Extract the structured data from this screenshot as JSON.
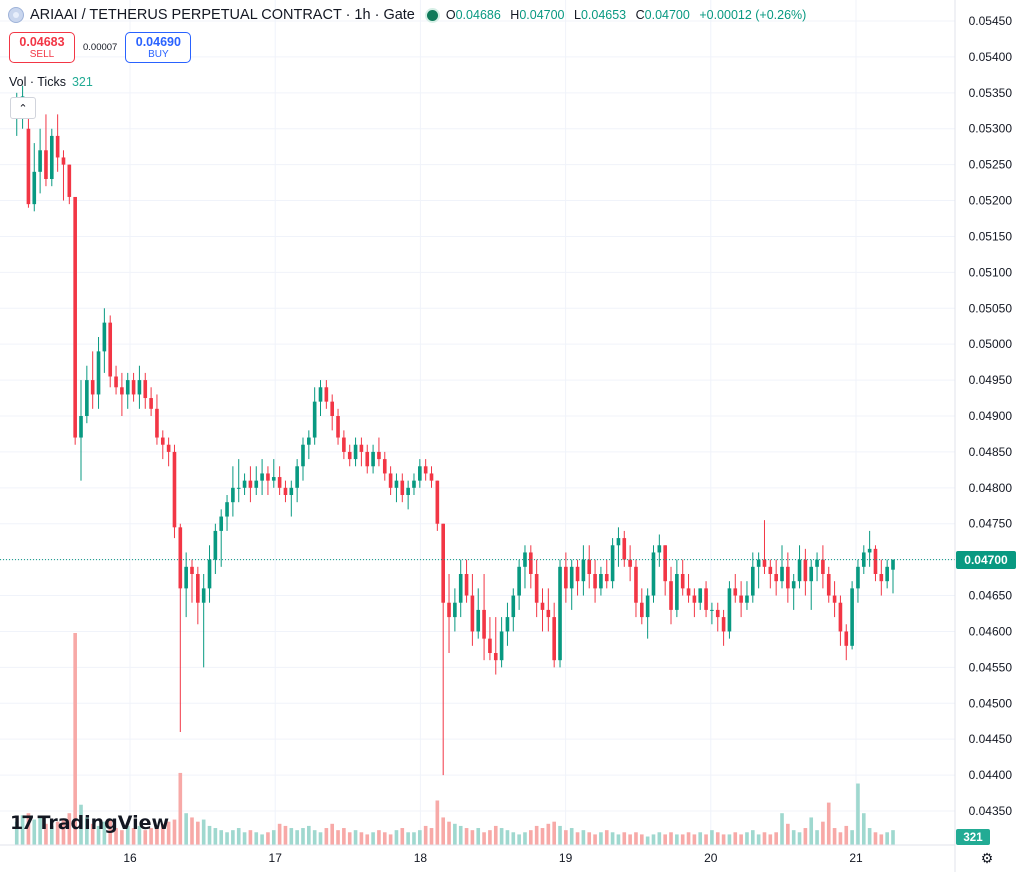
{
  "header": {
    "title": "ARIAAI / TETHERUS PERPETUAL CONTRACT · 1h · Gate",
    "ohlc": [
      {
        "key": "O",
        "value": "0.04686"
      },
      {
        "key": "H",
        "value": "0.04700"
      },
      {
        "key": "L",
        "value": "0.04653"
      },
      {
        "key": "C",
        "value": "0.04700"
      },
      {
        "key": "",
        "value": "+0.00012 (+0.26%)"
      }
    ]
  },
  "trade": {
    "sell_price": "0.04683",
    "sell_label": "SELL",
    "spread": "0.00007",
    "buy_price": "0.04690",
    "buy_label": "BUY"
  },
  "volume_indicator": {
    "label": "Vol · Ticks",
    "value": "321"
  },
  "logo_text": "TradingView",
  "colors": {
    "up": "#089981",
    "down": "#f23645",
    "vol_up": "#9fd8cf",
    "vol_down": "#f7a9a7",
    "last_price": "#089981"
  },
  "chart_data": {
    "type": "candlestick",
    "symbol": "ARIAAI / TETHERUS PERPETUAL CONTRACT",
    "interval": "1h",
    "exchange": "Gate",
    "price_axis": {
      "ticks": [
        "0.05450",
        "0.05400",
        "0.05350",
        "0.05300",
        "0.05250",
        "0.05200",
        "0.05150",
        "0.05100",
        "0.05050",
        "0.05000",
        "0.04950",
        "0.04900",
        "0.04850",
        "0.04800",
        "0.04750",
        "0.04700",
        "0.04650",
        "0.04600",
        "0.04550",
        "0.04500",
        "0.04450",
        "0.04400",
        "0.04350"
      ],
      "range": [
        0.0433,
        0.0547
      ]
    },
    "time_axis": {
      "labels": [
        "16",
        "17",
        "18",
        "19",
        "20",
        "21"
      ],
      "start_day": 15.2,
      "end_day": 21.35
    },
    "last_price": "0.04700",
    "last_volume": "321",
    "grid": true,
    "candles_start_day": 15.22,
    "candles_per_day": 24,
    "candles": [
      [
        0.05315,
        0.0535,
        0.0529,
        0.0533
      ],
      [
        0.0533,
        0.0536,
        0.053,
        0.05345
      ],
      [
        0.053,
        0.0532,
        0.0519,
        0.05195
      ],
      [
        0.05195,
        0.0528,
        0.05185,
        0.0524
      ],
      [
        0.0524,
        0.053,
        0.0521,
        0.0527
      ],
      [
        0.0527,
        0.0532,
        0.0522,
        0.0523
      ],
      [
        0.0523,
        0.053,
        0.0522,
        0.0529
      ],
      [
        0.0529,
        0.0532,
        0.0524,
        0.0526
      ],
      [
        0.0526,
        0.0527,
        0.052,
        0.0525
      ],
      [
        0.0525,
        0.0525,
        0.05195,
        0.05205
      ],
      [
        0.05205,
        0.05205,
        0.0486,
        0.0487
      ],
      [
        0.0487,
        0.0495,
        0.0481,
        0.049
      ],
      [
        0.049,
        0.0497,
        0.0489,
        0.0495
      ],
      [
        0.0495,
        0.0499,
        0.0491,
        0.0493
      ],
      [
        0.0493,
        0.0501,
        0.0491,
        0.0499
      ],
      [
        0.0499,
        0.0505,
        0.0496,
        0.0503
      ],
      [
        0.0503,
        0.0504,
        0.0494,
        0.04955
      ],
      [
        0.04955,
        0.0497,
        0.0493,
        0.0494
      ],
      [
        0.0494,
        0.0496,
        0.049,
        0.0493
      ],
      [
        0.0493,
        0.0496,
        0.0491,
        0.0495
      ],
      [
        0.0495,
        0.0496,
        0.0492,
        0.0493
      ],
      [
        0.0493,
        0.0497,
        0.0491,
        0.0495
      ],
      [
        0.0495,
        0.0496,
        0.0491,
        0.04925
      ],
      [
        0.04925,
        0.0494,
        0.049,
        0.0491
      ],
      [
        0.0491,
        0.0493,
        0.0486,
        0.0487
      ],
      [
        0.0487,
        0.0488,
        0.0484,
        0.0486
      ],
      [
        0.0486,
        0.0487,
        0.0483,
        0.0485
      ],
      [
        0.0485,
        0.0486,
        0.0473,
        0.04745
      ],
      [
        0.04745,
        0.0475,
        0.0446,
        0.0466
      ],
      [
        0.0466,
        0.0471,
        0.0462,
        0.0469
      ],
      [
        0.0469,
        0.047,
        0.0464,
        0.0468
      ],
      [
        0.0468,
        0.0469,
        0.0461,
        0.0464
      ],
      [
        0.0464,
        0.0468,
        0.0455,
        0.0466
      ],
      [
        0.0466,
        0.0472,
        0.0464,
        0.047
      ],
      [
        0.047,
        0.0475,
        0.0468,
        0.0474
      ],
      [
        0.0474,
        0.0477,
        0.0469,
        0.0476
      ],
      [
        0.0476,
        0.0479,
        0.0474,
        0.0478
      ],
      [
        0.0478,
        0.0483,
        0.0476,
        0.048
      ],
      [
        0.048,
        0.0484,
        0.0478,
        0.048
      ],
      [
        0.048,
        0.0482,
        0.0479,
        0.0481
      ],
      [
        0.0481,
        0.0483,
        0.0478,
        0.048
      ],
      [
        0.048,
        0.0483,
        0.0479,
        0.0481
      ],
      [
        0.0481,
        0.0484,
        0.0479,
        0.0482
      ],
      [
        0.0482,
        0.0483,
        0.0479,
        0.0481
      ],
      [
        0.0481,
        0.0484,
        0.048,
        0.04815
      ],
      [
        0.04815,
        0.0483,
        0.0479,
        0.048
      ],
      [
        0.048,
        0.0481,
        0.0478,
        0.0479
      ],
      [
        0.0479,
        0.0481,
        0.0476,
        0.048
      ],
      [
        0.048,
        0.0484,
        0.0478,
        0.0483
      ],
      [
        0.0483,
        0.0487,
        0.0481,
        0.0486
      ],
      [
        0.0486,
        0.0488,
        0.0484,
        0.0487
      ],
      [
        0.0487,
        0.0494,
        0.0486,
        0.0492
      ],
      [
        0.0492,
        0.0495,
        0.049,
        0.0494
      ],
      [
        0.0494,
        0.0495,
        0.0491,
        0.0492
      ],
      [
        0.0492,
        0.0493,
        0.0488,
        0.049
      ],
      [
        0.049,
        0.0491,
        0.0486,
        0.0487
      ],
      [
        0.0487,
        0.0488,
        0.0484,
        0.0485
      ],
      [
        0.0485,
        0.0486,
        0.0483,
        0.0484
      ],
      [
        0.0484,
        0.0487,
        0.0483,
        0.0486
      ],
      [
        0.0486,
        0.0487,
        0.0483,
        0.0485
      ],
      [
        0.0485,
        0.0486,
        0.0482,
        0.0483
      ],
      [
        0.0483,
        0.0486,
        0.0482,
        0.0485
      ],
      [
        0.0485,
        0.0487,
        0.0483,
        0.0484
      ],
      [
        0.0484,
        0.0485,
        0.0481,
        0.0482
      ],
      [
        0.0482,
        0.0483,
        0.0479,
        0.048
      ],
      [
        0.048,
        0.0482,
        0.0478,
        0.0481
      ],
      [
        0.0481,
        0.0482,
        0.0478,
        0.0479
      ],
      [
        0.0479,
        0.0481,
        0.0477,
        0.048
      ],
      [
        0.048,
        0.0482,
        0.0479,
        0.0481
      ],
      [
        0.0481,
        0.0484,
        0.048,
        0.0483
      ],
      [
        0.0483,
        0.0484,
        0.0481,
        0.0482
      ],
      [
        0.0482,
        0.0483,
        0.048,
        0.0481
      ],
      [
        0.0481,
        0.0481,
        0.0474,
        0.0475
      ],
      [
        0.0475,
        0.0475,
        0.044,
        0.0464
      ],
      [
        0.0464,
        0.0468,
        0.0457,
        0.0462
      ],
      [
        0.0462,
        0.0466,
        0.046,
        0.0464
      ],
      [
        0.0464,
        0.047,
        0.0462,
        0.0468
      ],
      [
        0.0468,
        0.047,
        0.0464,
        0.0465
      ],
      [
        0.0465,
        0.0468,
        0.0458,
        0.046
      ],
      [
        0.046,
        0.0466,
        0.0459,
        0.0463
      ],
      [
        0.0463,
        0.0468,
        0.0456,
        0.0459
      ],
      [
        0.0459,
        0.0462,
        0.0456,
        0.0457
      ],
      [
        0.0457,
        0.0462,
        0.0454,
        0.0456
      ],
      [
        0.0456,
        0.0462,
        0.0455,
        0.046
      ],
      [
        0.046,
        0.0464,
        0.0458,
        0.0462
      ],
      [
        0.0462,
        0.0466,
        0.046,
        0.0465
      ],
      [
        0.0465,
        0.047,
        0.0463,
        0.0469
      ],
      [
        0.0469,
        0.0472,
        0.0466,
        0.0471
      ],
      [
        0.0471,
        0.0472,
        0.0466,
        0.0468
      ],
      [
        0.0468,
        0.047,
        0.0462,
        0.0464
      ],
      [
        0.0464,
        0.0466,
        0.046,
        0.0463
      ],
      [
        0.0463,
        0.0466,
        0.046,
        0.0462
      ],
      [
        0.0462,
        0.0464,
        0.0455,
        0.0456
      ],
      [
        0.0456,
        0.047,
        0.0455,
        0.0469
      ],
      [
        0.0469,
        0.0471,
        0.0464,
        0.0466
      ],
      [
        0.0466,
        0.047,
        0.0463,
        0.0469
      ],
      [
        0.0469,
        0.047,
        0.0465,
        0.0467
      ],
      [
        0.0467,
        0.0472,
        0.0465,
        0.047
      ],
      [
        0.047,
        0.0472,
        0.0466,
        0.0468
      ],
      [
        0.0468,
        0.047,
        0.0464,
        0.0466
      ],
      [
        0.0466,
        0.0469,
        0.0465,
        0.0468
      ],
      [
        0.0468,
        0.047,
        0.0466,
        0.0467
      ],
      [
        0.0467,
        0.0473,
        0.0466,
        0.0472
      ],
      [
        0.0472,
        0.04745,
        0.0469,
        0.0473
      ],
      [
        0.0473,
        0.0474,
        0.0469,
        0.047
      ],
      [
        0.047,
        0.0472,
        0.0467,
        0.0469
      ],
      [
        0.0469,
        0.047,
        0.0462,
        0.0464
      ],
      [
        0.0464,
        0.0466,
        0.0461,
        0.0462
      ],
      [
        0.0462,
        0.0466,
        0.0459,
        0.0465
      ],
      [
        0.0465,
        0.0472,
        0.0464,
        0.0471
      ],
      [
        0.0471,
        0.04735,
        0.0469,
        0.0472
      ],
      [
        0.0472,
        0.0472,
        0.0465,
        0.0467
      ],
      [
        0.0467,
        0.0469,
        0.0461,
        0.0463
      ],
      [
        0.0463,
        0.047,
        0.0462,
        0.0468
      ],
      [
        0.0468,
        0.047,
        0.0465,
        0.0466
      ],
      [
        0.0466,
        0.0468,
        0.0464,
        0.0465
      ],
      [
        0.0465,
        0.0466,
        0.0462,
        0.0464
      ],
      [
        0.0464,
        0.0466,
        0.0463,
        0.0466
      ],
      [
        0.0466,
        0.0467,
        0.0462,
        0.0463
      ],
      [
        0.0463,
        0.0464,
        0.0461,
        0.0463
      ],
      [
        0.0463,
        0.0464,
        0.046,
        0.0462
      ],
      [
        0.0462,
        0.0463,
        0.0458,
        0.046
      ],
      [
        0.046,
        0.0467,
        0.0459,
        0.0466
      ],
      [
        0.0466,
        0.0468,
        0.0464,
        0.0465
      ],
      [
        0.0465,
        0.0467,
        0.0462,
        0.0464
      ],
      [
        0.0464,
        0.0467,
        0.0463,
        0.0465
      ],
      [
        0.0465,
        0.0471,
        0.0464,
        0.0469
      ],
      [
        0.0469,
        0.0471,
        0.0466,
        0.047
      ],
      [
        0.047,
        0.04755,
        0.0468,
        0.0469
      ],
      [
        0.0469,
        0.047,
        0.0466,
        0.0468
      ],
      [
        0.0468,
        0.047,
        0.0465,
        0.0467
      ],
      [
        0.0467,
        0.0472,
        0.0466,
        0.0469
      ],
      [
        0.0469,
        0.0471,
        0.0464,
        0.0466
      ],
      [
        0.0466,
        0.0468,
        0.0463,
        0.0467
      ],
      [
        0.0467,
        0.0472,
        0.0466,
        0.047
      ],
      [
        0.047,
        0.04715,
        0.0465,
        0.0467
      ],
      [
        0.0467,
        0.047,
        0.0463,
        0.0469
      ],
      [
        0.0469,
        0.0471,
        0.0467,
        0.047
      ],
      [
        0.047,
        0.0472,
        0.0466,
        0.0468
      ],
      [
        0.0468,
        0.0469,
        0.0464,
        0.0465
      ],
      [
        0.0465,
        0.0467,
        0.0462,
        0.0464
      ],
      [
        0.0464,
        0.0465,
        0.0458,
        0.046
      ],
      [
        0.046,
        0.0461,
        0.0456,
        0.0458
      ],
      [
        0.0458,
        0.0467,
        0.04575,
        0.0466
      ],
      [
        0.0466,
        0.047,
        0.0464,
        0.0469
      ],
      [
        0.0469,
        0.0472,
        0.0468,
        0.0471
      ],
      [
        0.0471,
        0.0474,
        0.0469,
        0.04715
      ],
      [
        0.04715,
        0.0472,
        0.0467,
        0.0468
      ],
      [
        0.0468,
        0.047,
        0.0465,
        0.0467
      ],
      [
        0.0467,
        0.047,
        0.0466,
        0.0469
      ],
      [
        0.04686,
        0.047,
        0.04653,
        0.047
      ]
    ],
    "volumes": [
      22,
      28,
      30,
      24,
      26,
      20,
      18,
      22,
      24,
      30,
      200,
      38,
      26,
      20,
      18,
      22,
      24,
      16,
      14,
      18,
      16,
      18,
      14,
      16,
      18,
      20,
      22,
      24,
      68,
      30,
      26,
      22,
      24,
      18,
      16,
      14,
      12,
      14,
      16,
      12,
      14,
      12,
      10,
      12,
      14,
      20,
      18,
      16,
      14,
      16,
      18,
      14,
      12,
      16,
      20,
      14,
      16,
      12,
      14,
      12,
      10,
      12,
      14,
      12,
      10,
      14,
      16,
      12,
      12,
      14,
      18,
      16,
      42,
      26,
      22,
      20,
      18,
      16,
      14,
      16,
      12,
      14,
      18,
      16,
      14,
      12,
      10,
      12,
      14,
      18,
      16,
      20,
      22,
      18,
      14,
      16,
      12,
      14,
      12,
      10,
      12,
      14,
      12,
      10,
      12,
      10,
      12,
      10,
      8,
      10,
      12,
      10,
      12,
      10,
      10,
      12,
      10,
      12,
      10,
      14,
      12,
      10,
      10,
      12,
      10,
      12,
      14,
      10,
      12,
      10,
      12,
      30,
      20,
      14,
      12,
      16,
      26,
      14,
      22,
      40,
      16,
      12,
      18,
      14,
      58,
      30,
      16,
      12,
      10,
      12,
      14,
      20,
      12,
      10,
      8,
      10,
      8
    ],
    "volume_directions_note": "volume bar color follows candle direction"
  }
}
